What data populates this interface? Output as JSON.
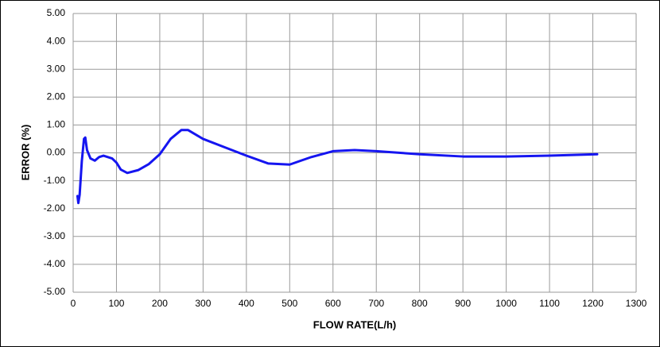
{
  "chart_data": {
    "type": "line",
    "xlabel": "FLOW RATE(L/h)",
    "ylabel": "ERROR (%)",
    "x": [
      10,
      12,
      15,
      20,
      25,
      28,
      32,
      40,
      50,
      60,
      70,
      90,
      100,
      110,
      125,
      150,
      175,
      200,
      225,
      250,
      265,
      300,
      350,
      400,
      450,
      500,
      550,
      600,
      650,
      700,
      800,
      900,
      1000,
      1100,
      1210
    ],
    "values": [
      -1.55,
      -1.8,
      -1.5,
      -0.3,
      0.5,
      0.55,
      0.1,
      -0.2,
      -0.28,
      -0.15,
      -0.1,
      -0.2,
      -0.35,
      -0.6,
      -0.72,
      -0.62,
      -0.4,
      -0.05,
      0.5,
      0.82,
      0.82,
      0.5,
      0.2,
      -0.1,
      -0.38,
      -0.42,
      -0.15,
      0.06,
      0.1,
      0.06,
      -0.05,
      -0.13,
      -0.13,
      -0.1,
      -0.05
    ],
    "color": "#1515f0",
    "xlim": [
      0,
      1300
    ],
    "xticks": [
      0,
      100,
      200,
      300,
      400,
      500,
      600,
      700,
      800,
      900,
      1000,
      1100,
      1200,
      1300
    ],
    "ylim": [
      -5,
      5
    ],
    "yticks": [
      {
        "value": -5,
        "label": "-5.00"
      },
      {
        "value": -4,
        "label": "-4.00"
      },
      {
        "value": -3,
        "label": "-3.00"
      },
      {
        "value": -2,
        "label": "-2.00"
      },
      {
        "value": -1,
        "label": "-1.00"
      },
      {
        "value": 0,
        "label": "0.00"
      },
      {
        "value": 1,
        "label": "1.00"
      },
      {
        "value": 2,
        "label": "2.00"
      },
      {
        "value": 3,
        "label": "3.00"
      },
      {
        "value": 4,
        "label": "4.00"
      },
      {
        "value": 5,
        "label": "5.00"
      }
    ],
    "grid": true
  }
}
